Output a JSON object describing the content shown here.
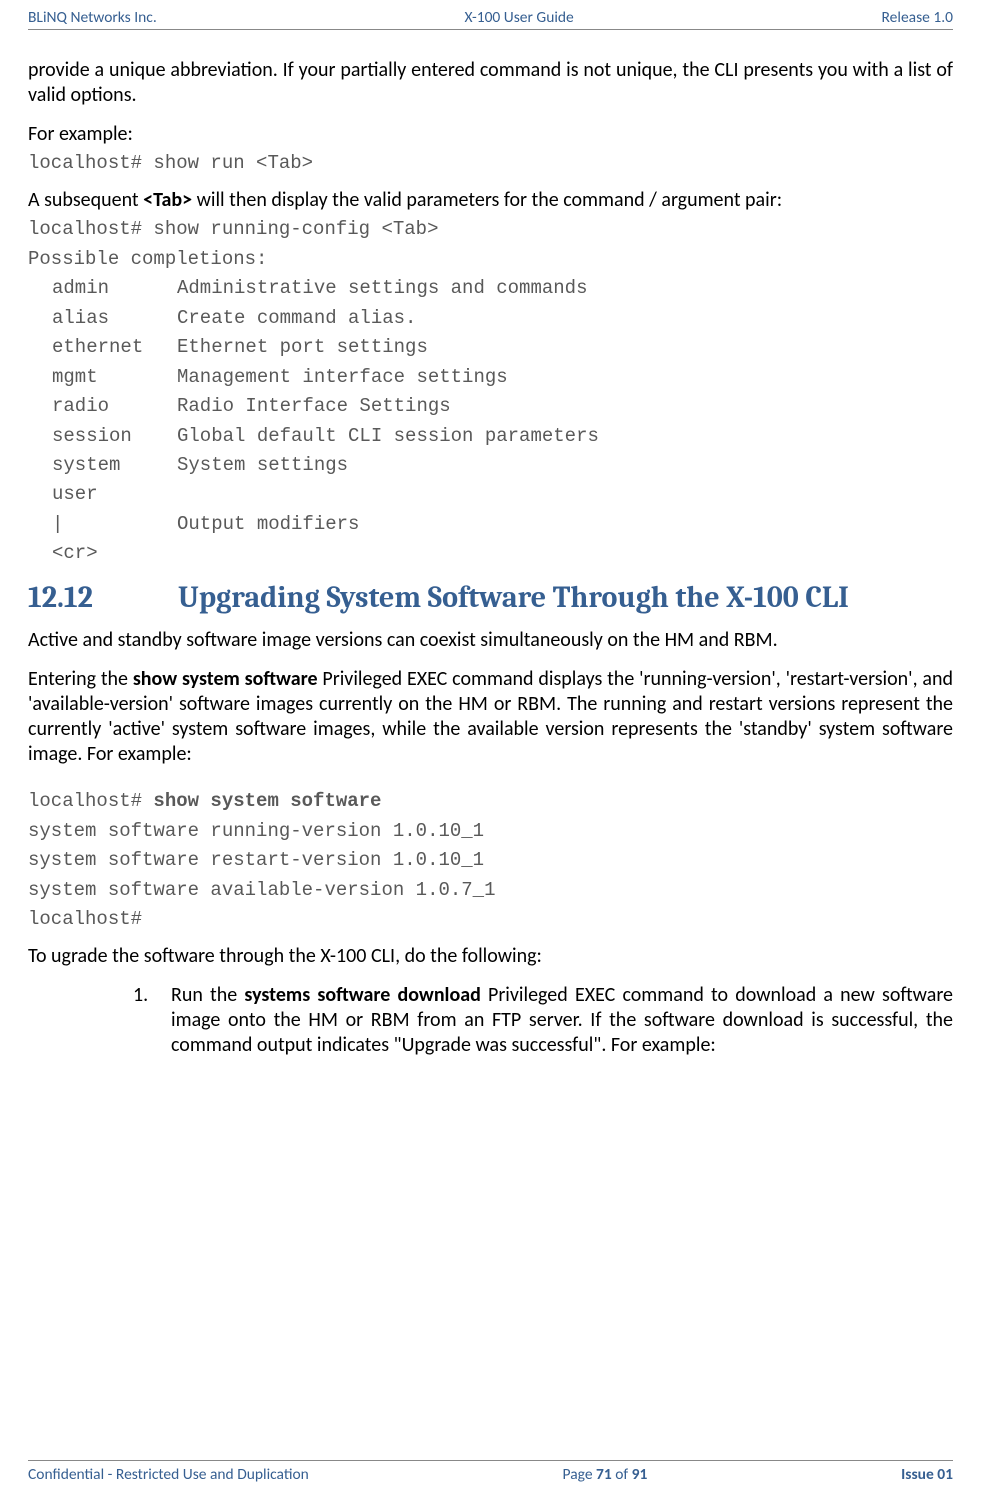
{
  "colors": {
    "header_text": "#365f91",
    "heading_text": "#365f91",
    "body_text": "#000000",
    "mono_text": "#595959",
    "rule": "#888888",
    "background": "#ffffff"
  },
  "fonts": {
    "body_family": "Calibri",
    "heading_family": "Cambria",
    "mono_family": "Courier New",
    "body_size_pt": 15,
    "heading_size_pt": 22,
    "mono_size_pt": 14,
    "header_size_pt": 11.5
  },
  "header": {
    "left": "BLiNQ Networks Inc.",
    "center": "X-100 User Guide",
    "right": "Release 1.0"
  },
  "body": {
    "p1": "provide a unique abbreviation. If your partially entered command is not unique, the CLI presents you with a list of valid options.",
    "p2_label": "For example:",
    "code1": "localhost# show run <Tab>",
    "p3_a": "A subsequent ",
    "p3_tab": "<Tab>",
    "p3_b": " will then display the valid parameters for the command / argument pair:",
    "code2_line1": "localhost# show running-config <Tab>",
    "code2_line2": "Possible completions:",
    "completions": [
      {
        "k": "admin",
        "d": "Administrative settings and commands"
      },
      {
        "k": "alias",
        "d": "Create command alias."
      },
      {
        "k": "ethernet",
        "d": "Ethernet port settings"
      },
      {
        "k": "mgmt",
        "d": "Management interface settings"
      },
      {
        "k": "radio",
        "d": "Radio Interface Settings"
      },
      {
        "k": "session",
        "d": "Global default CLI session parameters"
      },
      {
        "k": "system",
        "d": "System settings"
      },
      {
        "k": "user",
        "d": ""
      },
      {
        "k": "|",
        "d": "Output modifiers"
      },
      {
        "k": "<cr>",
        "d": ""
      }
    ],
    "h2_num": "12.12",
    "h2_title": "Upgrading System Software Through the X-100 CLI",
    "p4": "Active and standby software image versions can coexist simultaneously on the HM and RBM.",
    "p5_a": "Entering the ",
    "p5_cmd": "show system software",
    "p5_b": " Privileged EXEC command displays the 'running-version', 'restart-version', and 'available-version' software images currently on the HM or RBM. The running and restart versions represent the currently 'active' system software images, while the available version represents the 'standby' system software image.  For example:",
    "code3_prompt": "localhost# ",
    "code3_cmd": "show system software",
    "code3_l2": "system software running-version 1.0.10_1",
    "code3_l3": "system software restart-version 1.0.10_1",
    "code3_l4": "system software available-version 1.0.7_1",
    "code3_l5": "localhost#",
    "p6": "To ugrade the software through the X-100 CLI, do the following:",
    "ol1_num": "1.",
    "ol1_a": "Run the ",
    "ol1_cmd": "systems software download",
    "ol1_b": " Privileged EXEC command to download a new software image onto the HM or RBM from an FTP server. If the software download is successful, the command output indicates \"Upgrade was successful\". For example:"
  },
  "footer": {
    "left": "Confidential - Restricted Use and Duplication",
    "center_a": "Page ",
    "center_pg": "71",
    "center_b": " of ",
    "center_total": "91",
    "right": "Issue 01"
  }
}
